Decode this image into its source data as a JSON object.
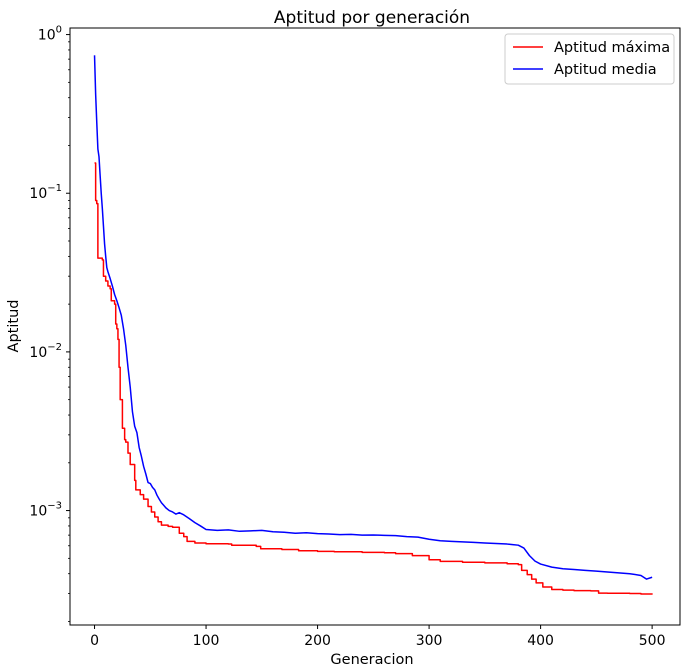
{
  "chart_data": {
    "type": "line",
    "title": "Aptitud por generación",
    "xlabel": "Generacion",
    "ylabel": "Aptitud",
    "xlim": [
      -22,
      525
    ],
    "ylim": [
      0.00019,
      1.1
    ],
    "yscale": "log",
    "grid": false,
    "legend": "top-right",
    "x_ticks": [
      0,
      100,
      200,
      300,
      400,
      500
    ],
    "x_tick_labels": [
      "0",
      "100",
      "200",
      "300",
      "400",
      "500"
    ],
    "y_ticks": [
      0.001,
      0.01,
      0.1,
      1
    ],
    "y_tick_labels": [
      {
        "base": "10",
        "exp": "−3"
      },
      {
        "base": "10",
        "exp": "−2"
      },
      {
        "base": "10",
        "exp": "−1"
      },
      {
        "base": "10",
        "exp": "0"
      }
    ],
    "series": [
      {
        "name": "Aptitud máxima",
        "color": "#ff0000",
        "style": "step",
        "points": [
          [
            0,
            0.155
          ],
          [
            1,
            0.09
          ],
          [
            2,
            0.086
          ],
          [
            3,
            0.039
          ],
          [
            7,
            0.038
          ],
          [
            8,
            0.03
          ],
          [
            10,
            0.028
          ],
          [
            12,
            0.026
          ],
          [
            14,
            0.025
          ],
          [
            15,
            0.021
          ],
          [
            18,
            0.02
          ],
          [
            19,
            0.015
          ],
          [
            20,
            0.014
          ],
          [
            21,
            0.012
          ],
          [
            22,
            0.008
          ],
          [
            23,
            0.005
          ],
          [
            25,
            0.0033
          ],
          [
            27,
            0.0028
          ],
          [
            28,
            0.0027
          ],
          [
            30,
            0.0023
          ],
          [
            32,
            0.00195
          ],
          [
            36,
            0.00155
          ],
          [
            37,
            0.00135
          ],
          [
            41,
            0.00126
          ],
          [
            44,
            0.00118
          ],
          [
            48,
            0.00106
          ],
          [
            51,
            0.00098
          ],
          [
            54,
            0.00091
          ],
          [
            57,
            0.00085
          ],
          [
            60,
            0.00081
          ],
          [
            66,
            0.000795
          ],
          [
            70,
            0.000785
          ],
          [
            76,
            0.00072
          ],
          [
            80,
            0.000685
          ],
          [
            83,
            0.00064
          ],
          [
            90,
            0.000625
          ],
          [
            100,
            0.000618
          ],
          [
            120,
            0.000615
          ],
          [
            123,
            0.000605
          ],
          [
            145,
            0.000595
          ],
          [
            149,
            0.000575
          ],
          [
            168,
            0.000568
          ],
          [
            183,
            0.000558
          ],
          [
            200,
            0.000553
          ],
          [
            215,
            0.00055
          ],
          [
            240,
            0.000545
          ],
          [
            260,
            0.000542
          ],
          [
            270,
            0.000535
          ],
          [
            285,
            0.00052
          ],
          [
            300,
            0.00049
          ],
          [
            310,
            0.000478
          ],
          [
            330,
            0.000472
          ],
          [
            350,
            0.000468
          ],
          [
            370,
            0.000462
          ],
          [
            380,
            0.000456
          ],
          [
            383,
            0.00042
          ],
          [
            388,
            0.000395
          ],
          [
            392,
            0.00037
          ],
          [
            396,
            0.00035
          ],
          [
            402,
            0.00033
          ],
          [
            410,
            0.000318
          ],
          [
            420,
            0.000315
          ],
          [
            430,
            0.000313
          ],
          [
            445,
            0.000312
          ],
          [
            452,
            0.000302
          ],
          [
            460,
            0.000301
          ],
          [
            480,
            0.0003
          ],
          [
            490,
            0.000298
          ],
          [
            500,
            0.000296
          ]
        ]
      },
      {
        "name": "Aptitud media",
        "color": "#0000ff",
        "style": "line",
        "points": [
          [
            0,
            0.74
          ],
          [
            1,
            0.42
          ],
          [
            2,
            0.28
          ],
          [
            3,
            0.19
          ],
          [
            4,
            0.17
          ],
          [
            5,
            0.13
          ],
          [
            6,
            0.1
          ],
          [
            7,
            0.08
          ],
          [
            8,
            0.062
          ],
          [
            9,
            0.048
          ],
          [
            10,
            0.04
          ],
          [
            11,
            0.034
          ],
          [
            12,
            0.032
          ],
          [
            14,
            0.029
          ],
          [
            16,
            0.026
          ],
          [
            18,
            0.023
          ],
          [
            20,
            0.021
          ],
          [
            22,
            0.019
          ],
          [
            24,
            0.017
          ],
          [
            26,
            0.014
          ],
          [
            28,
            0.011
          ],
          [
            30,
            0.008
          ],
          [
            32,
            0.006
          ],
          [
            34,
            0.0042
          ],
          [
            36,
            0.0034
          ],
          [
            38,
            0.0031
          ],
          [
            40,
            0.0025
          ],
          [
            42,
            0.0022
          ],
          [
            44,
            0.0019
          ],
          [
            46,
            0.0017
          ],
          [
            48,
            0.0015
          ],
          [
            50,
            0.00148
          ],
          [
            52,
            0.0014
          ],
          [
            54,
            0.00135
          ],
          [
            56,
            0.00125
          ],
          [
            58,
            0.00118
          ],
          [
            60,
            0.00112
          ],
          [
            62,
            0.00108
          ],
          [
            64,
            0.00104
          ],
          [
            67,
            0.001
          ],
          [
            70,
            0.00098
          ],
          [
            73,
            0.00095
          ],
          [
            76,
            0.00097
          ],
          [
            80,
            0.00094
          ],
          [
            85,
            0.00089
          ],
          [
            90,
            0.00084
          ],
          [
            95,
            0.0008
          ],
          [
            100,
            0.00076
          ],
          [
            110,
            0.00075
          ],
          [
            120,
            0.000755
          ],
          [
            130,
            0.00074
          ],
          [
            140,
            0.000745
          ],
          [
            150,
            0.00075
          ],
          [
            160,
            0.000735
          ],
          [
            170,
            0.00073
          ],
          [
            180,
            0.00072
          ],
          [
            190,
            0.000725
          ],
          [
            200,
            0.000715
          ],
          [
            210,
            0.000712
          ],
          [
            220,
            0.000705
          ],
          [
            230,
            0.000708
          ],
          [
            240,
            0.0007
          ],
          [
            250,
            0.000702
          ],
          [
            260,
            0.000698
          ],
          [
            270,
            0.000695
          ],
          [
            280,
            0.000685
          ],
          [
            290,
            0.00068
          ],
          [
            300,
            0.00066
          ],
          [
            310,
            0.000645
          ],
          [
            320,
            0.00064
          ],
          [
            330,
            0.000635
          ],
          [
            340,
            0.00063
          ],
          [
            350,
            0.000625
          ],
          [
            360,
            0.00062
          ],
          [
            370,
            0.000615
          ],
          [
            375,
            0.00061
          ],
          [
            380,
            0.000605
          ],
          [
            385,
            0.00058
          ],
          [
            390,
            0.00052
          ],
          [
            395,
            0.00048
          ],
          [
            400,
            0.00046
          ],
          [
            410,
            0.00044
          ],
          [
            420,
            0.00043
          ],
          [
            430,
            0.000425
          ],
          [
            440,
            0.00042
          ],
          [
            450,
            0.000415
          ],
          [
            460,
            0.00041
          ],
          [
            470,
            0.000405
          ],
          [
            480,
            0.0004
          ],
          [
            490,
            0.00039
          ],
          [
            495,
            0.00037
          ],
          [
            500,
            0.00038
          ]
        ]
      }
    ]
  }
}
